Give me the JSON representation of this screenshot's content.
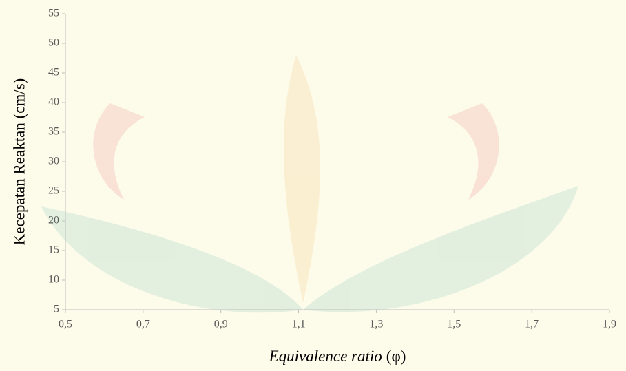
{
  "chart_data": {
    "type": "scatter",
    "ylabel": "Kecepatan Reaktan (cm/s)",
    "xlabel": [
      "Equivalence ratio",
      "(φ)"
    ],
    "xlim": [
      0.5,
      1.9
    ],
    "xticks": [
      {
        "value": 0.5,
        "label": "0,5"
      },
      {
        "value": 0.7,
        "label": "0,7"
      },
      {
        "value": 0.9,
        "label": "0,9"
      },
      {
        "value": 1.1,
        "label": "1,1"
      },
      {
        "value": 1.3,
        "label": "1,3"
      },
      {
        "value": 1.5,
        "label": "1,5"
      },
      {
        "value": 1.7,
        "label": "1,7"
      },
      {
        "value": 1.9,
        "label": "1,9"
      }
    ],
    "ylim": [
      5,
      55
    ],
    "yticks": [
      5,
      10,
      15,
      20,
      25,
      30,
      35,
      40,
      45,
      50,
      55
    ],
    "series": []
  }
}
